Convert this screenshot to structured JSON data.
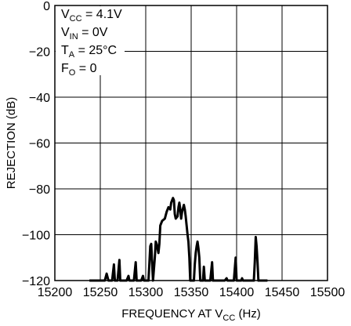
{
  "chart_data": {
    "type": "line",
    "xlabel": {
      "main": "FREQUENCY AT V",
      "sub": "CC",
      "tail": " (Hz)"
    },
    "ylabel": "REJECTION (dB)",
    "xlim": [
      15200,
      15500
    ],
    "ylim": [
      -120,
      0
    ],
    "x_ticks": [
      "15200",
      "15250",
      "15300",
      "15350",
      "15400",
      "15450",
      "15500"
    ],
    "y_ticks": [
      "0",
      "−20",
      "−40",
      "−60",
      "−80",
      "−100",
      "−120"
    ],
    "grid": true,
    "conditions": [
      {
        "main": "V",
        "sub": "CC",
        "tail": " = 4.1V"
      },
      {
        "main": "V",
        "sub": "IN",
        "tail": " = 0V"
      },
      {
        "main": "T",
        "sub": "A",
        "tail": " = 25°C"
      },
      {
        "main": "F",
        "sub": "O",
        "tail": " = 0"
      }
    ],
    "series": [
      {
        "values": [
          [
            15238,
            -120
          ],
          [
            15255,
            -120
          ],
          [
            15257,
            -117
          ],
          [
            15259,
            -120
          ],
          [
            15263,
            -120
          ],
          [
            15265,
            -113
          ],
          [
            15266,
            -120
          ],
          [
            15269,
            -120
          ],
          [
            15271,
            -111
          ],
          [
            15272,
            -120
          ],
          [
            15279,
            -120
          ],
          [
            15281,
            -118
          ],
          [
            15282,
            -120
          ],
          [
            15287,
            -120
          ],
          [
            15289,
            -112
          ],
          [
            15290,
            -120
          ],
          [
            15295,
            -120
          ],
          [
            15297,
            -118
          ],
          [
            15298,
            -120
          ],
          [
            15303,
            -120
          ],
          [
            15304,
            -113
          ],
          [
            15305,
            -105
          ],
          [
            15306,
            -104
          ],
          [
            15307,
            -112
          ],
          [
            15308,
            -120
          ],
          [
            15310,
            -110
          ],
          [
            15311,
            -103
          ],
          [
            15312,
            -104
          ],
          [
            15313,
            -106
          ],
          [
            15314,
            -108
          ],
          [
            15315,
            -104
          ],
          [
            15316,
            -96
          ],
          [
            15318,
            -94
          ],
          [
            15321,
            -93
          ],
          [
            15323,
            -90
          ],
          [
            15325,
            -88
          ],
          [
            15327,
            -89
          ],
          [
            15328,
            -86
          ],
          [
            15330,
            -84
          ],
          [
            15331,
            -85
          ],
          [
            15332,
            -91
          ],
          [
            15333,
            -93
          ],
          [
            15335,
            -92
          ],
          [
            15336,
            -88
          ],
          [
            15337,
            -86
          ],
          [
            15338,
            -89
          ],
          [
            15339,
            -93
          ],
          [
            15340,
            -90
          ],
          [
            15342,
            -87
          ],
          [
            15343,
            -89
          ],
          [
            15344,
            -92
          ],
          [
            15345,
            -96
          ],
          [
            15346,
            -100
          ],
          [
            15347,
            -103
          ],
          [
            15348,
            -110
          ],
          [
            15349,
            -120
          ],
          [
            15353,
            -120
          ],
          [
            15354,
            -113
          ],
          [
            15355,
            -108
          ],
          [
            15356,
            -105
          ],
          [
            15357,
            -103
          ],
          [
            15358,
            -106
          ],
          [
            15359,
            -110
          ],
          [
            15360,
            -120
          ],
          [
            15363,
            -120
          ],
          [
            15364,
            -114
          ],
          [
            15365,
            -120
          ],
          [
            15371,
            -120
          ],
          [
            15373,
            -112
          ],
          [
            15374,
            -120
          ],
          [
            15387,
            -120
          ],
          [
            15389,
            -119
          ],
          [
            15390,
            -120
          ],
          [
            15397,
            -120
          ],
          [
            15399,
            -110
          ],
          [
            15400,
            -120
          ],
          [
            15405,
            -120
          ],
          [
            15406,
            -119
          ],
          [
            15407,
            -120
          ],
          [
            15419,
            -120
          ],
          [
            15420,
            -112
          ],
          [
            15421,
            -101
          ],
          [
            15422,
            -105
          ],
          [
            15423,
            -112
          ],
          [
            15424,
            -120
          ],
          [
            15434,
            -120
          ]
        ]
      }
    ]
  }
}
